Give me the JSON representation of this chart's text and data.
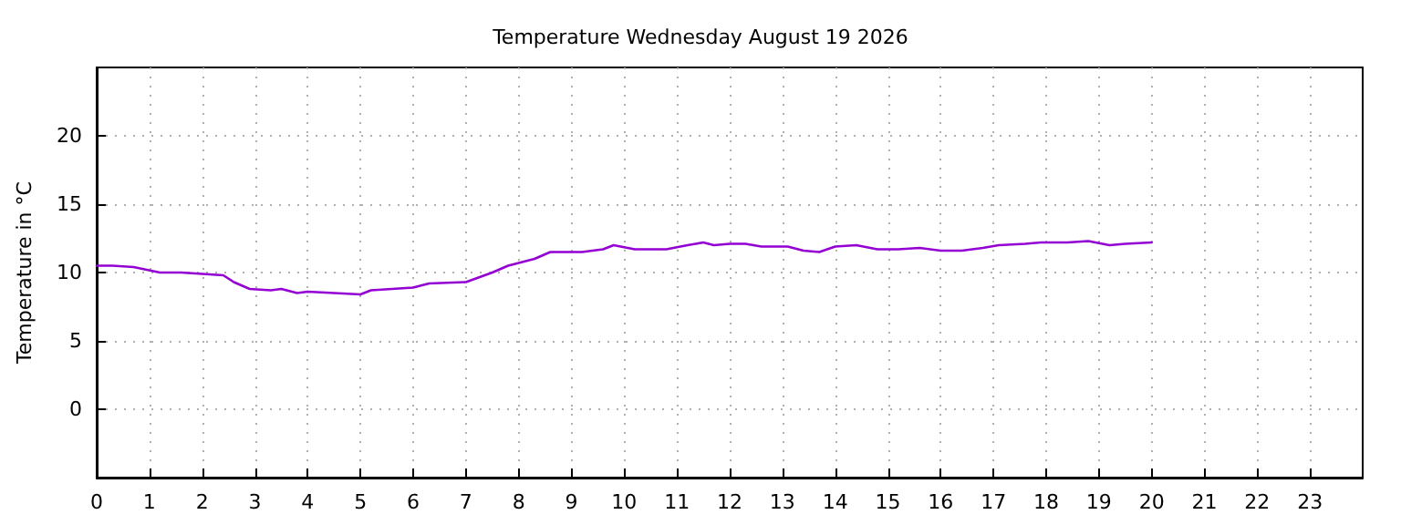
{
  "chart_data": {
    "type": "line",
    "title": "Temperature Wednesday August 19 2026",
    "ylabel": "Temperature in °C",
    "xlim": [
      0,
      24
    ],
    "xticks": [
      0,
      1,
      2,
      3,
      4,
      5,
      6,
      7,
      8,
      9,
      10,
      11,
      12,
      13,
      14,
      15,
      16,
      17,
      18,
      19,
      20,
      21,
      22,
      23
    ],
    "ylim": [
      -5,
      25
    ],
    "yticks": [
      0,
      5,
      10,
      15,
      20
    ],
    "grid": true,
    "marker": "none",
    "line_style": "solid",
    "series": [
      {
        "color": "#9400d3",
        "x": [
          0,
          0.3,
          0.7,
          1.2,
          1.6,
          2,
          2.4,
          2.6,
          2.9,
          3.3,
          3.5,
          3.8,
          4,
          4.5,
          5,
          5.2,
          5.6,
          6,
          6.3,
          7,
          7.5,
          7.8,
          8.3,
          8.6,
          9.2,
          9.6,
          9.8,
          10.2,
          10.8,
          11.2,
          11.5,
          11.7,
          12,
          12.3,
          12.6,
          13.1,
          13.4,
          13.7,
          14,
          14.4,
          14.8,
          15.2,
          15.6,
          16,
          16.4,
          16.8,
          17.1,
          17.6,
          17.9,
          18.4,
          18.8,
          19.2,
          19.5,
          20
        ],
        "values": [
          10.5,
          10.5,
          10.4,
          10,
          10,
          9.9,
          9.8,
          9.3,
          8.8,
          8.7,
          8.8,
          8.5,
          8.6,
          8.5,
          8.4,
          8.7,
          8.8,
          8.9,
          9.2,
          9.3,
          10,
          10.5,
          11,
          11.5,
          11.5,
          11.7,
          12,
          11.7,
          11.7,
          12,
          12.2,
          12,
          12.1,
          12.1,
          11.9,
          11.9,
          11.6,
          11.5,
          11.9,
          12,
          11.7,
          11.7,
          11.8,
          11.6,
          11.6,
          11.8,
          12,
          12.1,
          12.2,
          12.2,
          12.3,
          12,
          12.1,
          12.2
        ]
      }
    ]
  }
}
